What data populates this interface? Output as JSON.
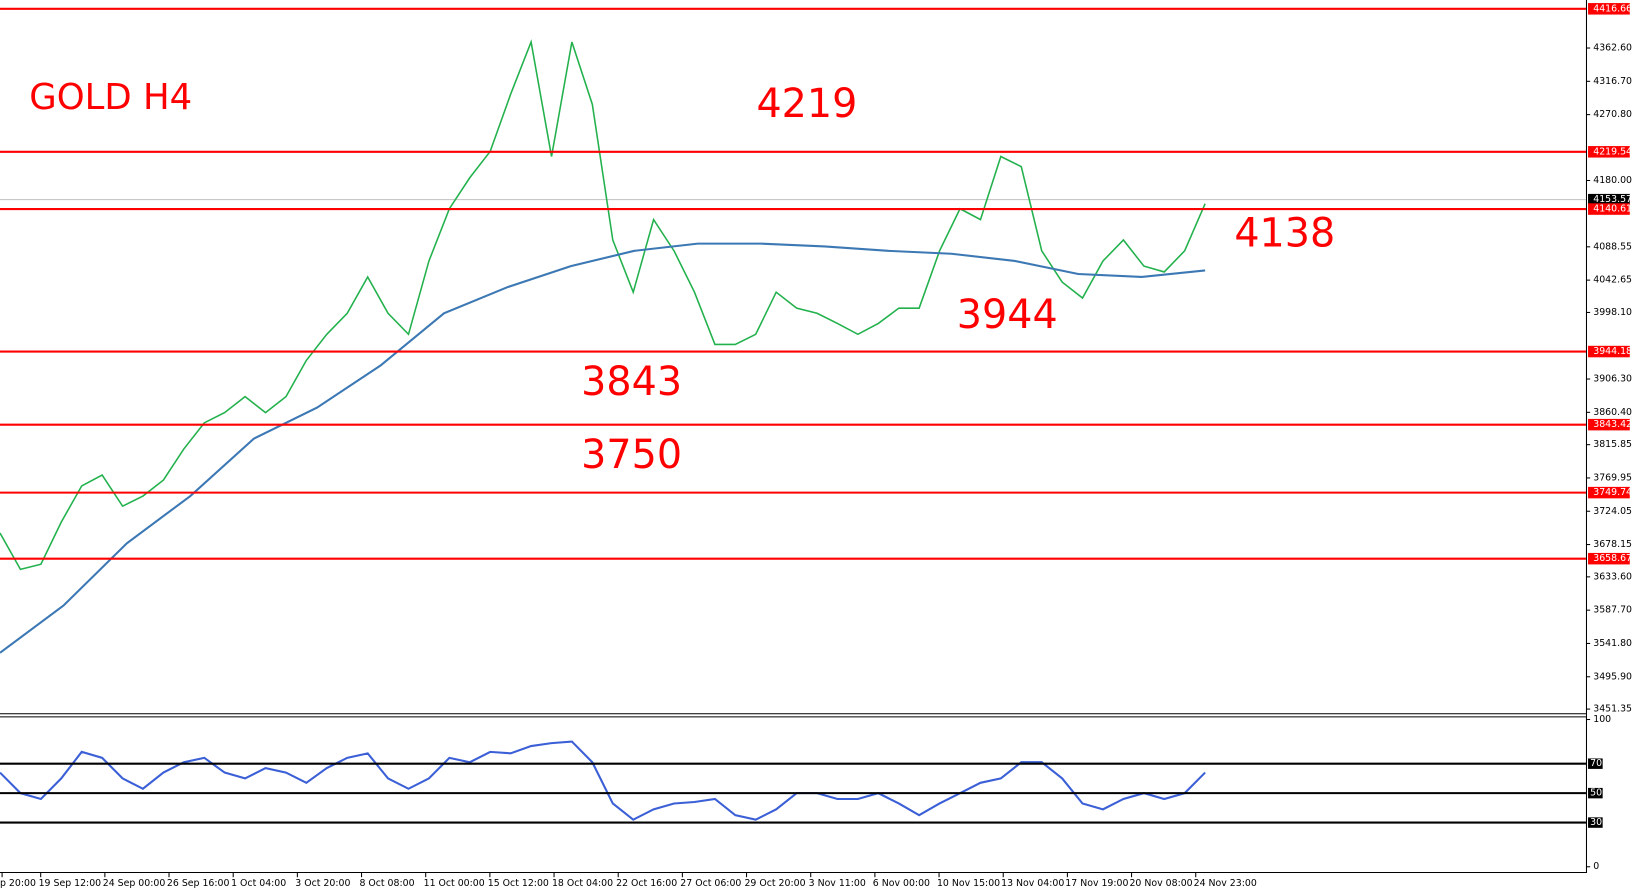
{
  "chart_data": [
    {
      "type": "line",
      "title": "GOLD H4",
      "annotations": [
        "4219",
        "4138",
        "3944",
        "3843",
        "3750"
      ],
      "x_axis_labels": [
        "p 20:00",
        "19 Sep 12:00",
        "24 Sep 00:00",
        "26 Sep 16:00",
        "1 Oct 04:00",
        "3 Oct 20:00",
        "8 Oct 08:00",
        "11 Oct 00:00",
        "15 Oct 12:00",
        "18 Oct 04:00",
        "22 Oct 16:00",
        "27 Oct 06:00",
        "29 Oct 20:00",
        "3 Nov 11:00",
        "6 Nov 00:00",
        "10 Nov 15:00",
        "13 Nov 04:00",
        "17 Nov 19:00",
        "20 Nov 08:00",
        "24 Nov 23:00"
      ],
      "series": [
        {
          "color": "#22b14c",
          "values": [
            3694,
            3644,
            3651,
            3709,
            3759,
            3774,
            3731,
            3745,
            3767,
            3810,
            3846,
            3860,
            3882,
            3860,
            3882,
            3932,
            3968,
            3997,
            4047,
            3997,
            3968,
            4069,
            4141,
            4184,
            4220,
            4299,
            4371,
            4213,
            4371,
            4285,
            4098,
            4026,
            4126,
            4083,
            4026,
            3954,
            3954,
            3968,
            4026,
            4004,
            3997,
            3983,
            3968,
            3983,
            4004,
            4004,
            4083,
            4141,
            4126,
            4213,
            4199,
            4083,
            4040,
            4018,
            4069,
            4098,
            4062,
            4054,
            4083,
            4148
          ]
        },
        {
          "color": "#3c78b4",
          "values": [
            3529,
            3594,
            3680,
            3745,
            3824,
            3867,
            3925,
            3997,
            4033,
            4062,
            4083,
            4093,
            4093,
            4089,
            4083,
            4079,
            4069,
            4051,
            4047,
            4056
          ]
        }
      ],
      "ylim": [
        3445.6,
        4428.8
      ],
      "yticks": [
        {
          "value": 4362.6,
          "label": "4362.60"
        },
        {
          "value": 4316.7,
          "label": "4316.70"
        },
        {
          "value": 4270.8,
          "label": "4270.80"
        },
        {
          "value": 4180,
          "label": "4180.00"
        },
        {
          "value": 4088.55,
          "label": "4088.55"
        },
        {
          "value": 4042.65,
          "label": "4042.65"
        },
        {
          "value": 3998.1,
          "label": "3998.10"
        },
        {
          "value": 3906.3,
          "label": "3906.30"
        },
        {
          "value": 3860.4,
          "label": "3860.40"
        },
        {
          "value": 3815.85,
          "label": "3815.85"
        },
        {
          "value": 3769.95,
          "label": "3769.95"
        },
        {
          "value": 3724.05,
          "label": "3724.05"
        },
        {
          "value": 3678.15,
          "label": "3678.15"
        },
        {
          "value": 3633.6,
          "label": "3633.60"
        },
        {
          "value": 3587.7,
          "label": "3587.70"
        },
        {
          "value": 3541.8,
          "label": "3541.80"
        },
        {
          "value": 3495.9,
          "label": "3495.90"
        },
        {
          "value": 3451.35,
          "label": "3451.35"
        }
      ],
      "levels": [
        {
          "value": 4416.66,
          "label": "4416.66"
        },
        {
          "value": 4219.54,
          "label": "4219.54"
        },
        {
          "value": 4140.61,
          "label": "4140.61"
        },
        {
          "value": 3944.18,
          "label": "3944.18"
        },
        {
          "value": 3843.42,
          "label": "3843.42"
        },
        {
          "value": 3749.74,
          "label": "3749.74"
        },
        {
          "value": 3658.67,
          "label": "3658.67"
        }
      ],
      "level_color": "#ff0000",
      "current_price": {
        "value": 4153.57,
        "label": "4153.57"
      }
    },
    {
      "type": "line",
      "series": [
        {
          "color": "#3b5fd6",
          "values": [
            64,
            50,
            46,
            60,
            78,
            74,
            60,
            53,
            64,
            71,
            74,
            64,
            60,
            67,
            64,
            57,
            67,
            74,
            77,
            60,
            53,
            60,
            74,
            71,
            78,
            77,
            82,
            84,
            85,
            71,
            43,
            32,
            39,
            43,
            44,
            46,
            35,
            32,
            39,
            50,
            50,
            46,
            46,
            50,
            43,
            35,
            43,
            50,
            57,
            60,
            71,
            71,
            60,
            43,
            39,
            46,
            50,
            46,
            50,
            64
          ]
        }
      ],
      "ylim": [
        0,
        100
      ],
      "yticks": [
        100,
        0
      ],
      "levels": [
        70,
        50,
        30
      ]
    }
  ]
}
